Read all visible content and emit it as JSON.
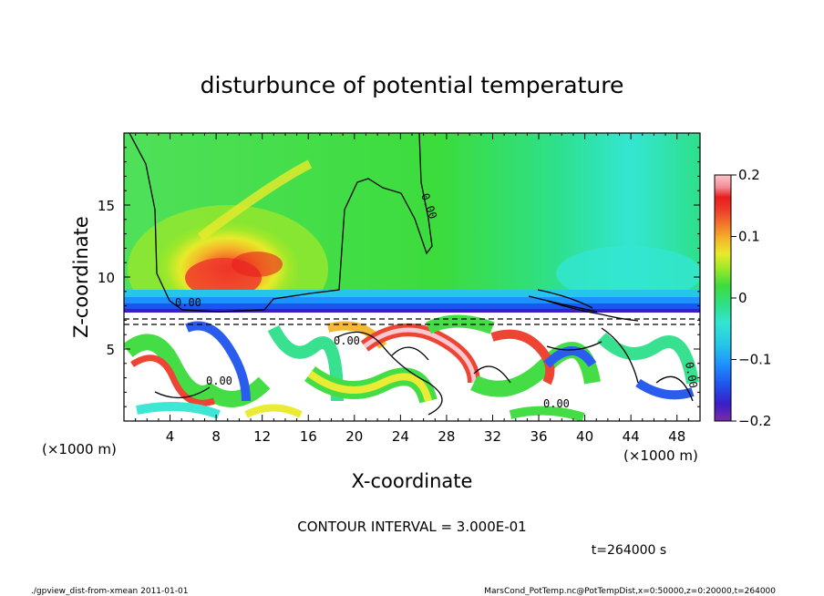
{
  "chart_data": {
    "type": "heatmap",
    "title": "disturbunce of potential temperature",
    "xlabel": "X-coordinate",
    "ylabel": "Z-coordinate",
    "x_unit": "(×1000 m)",
    "z_unit": "(×1000 m)",
    "xlim": [
      0,
      50
    ],
    "ylim": [
      0,
      20
    ],
    "x_ticks": [
      4,
      8,
      12,
      16,
      20,
      24,
      28,
      32,
      36,
      40,
      44,
      48
    ],
    "y_ticks": [
      5,
      10,
      15
    ],
    "colorbar": {
      "range": [
        -0.2,
        0.2
      ],
      "tick_labels": [
        "0.2",
        "0.1",
        "0",
        "−0.1",
        "−0.2"
      ],
      "tick_values": [
        0.2,
        0.1,
        0,
        -0.1,
        -0.2
      ]
    },
    "contour_labels": [
      "0.00",
      "0.00",
      "0.00",
      "0.00",
      "0.00",
      "0.00",
      "0.00"
    ],
    "features": {
      "warm_anomaly_center": {
        "x": 9,
        "z": 10,
        "value": 0.15
      },
      "cold_layer_top_z": 8,
      "turbulent_layer": {
        "z_min": 0,
        "z_max": 7.5
      }
    },
    "contour_interval": "CONTOUR INTERVAL = 3.000E-01",
    "time_label": "t=264000 s"
  },
  "footer": {
    "left": "./gpview_dist-from-xmean  2011-01-01",
    "right": "MarsCond_PotTemp.nc@PotTempDist,x=0:50000,z=0:20000,t=264000"
  },
  "colors": {
    "cmap": [
      "#7b2ca8",
      "#3a1ec8",
      "#1f55ee",
      "#1e90ff",
      "#26c6e8",
      "#33e6d2",
      "#2ee08a",
      "#3cdc3c",
      "#9ee82a",
      "#e8ea2a",
      "#f5b52a",
      "#f3752a",
      "#ee3a2a",
      "#e71e1e",
      "#f58a96",
      "#fac6cc"
    ]
  }
}
